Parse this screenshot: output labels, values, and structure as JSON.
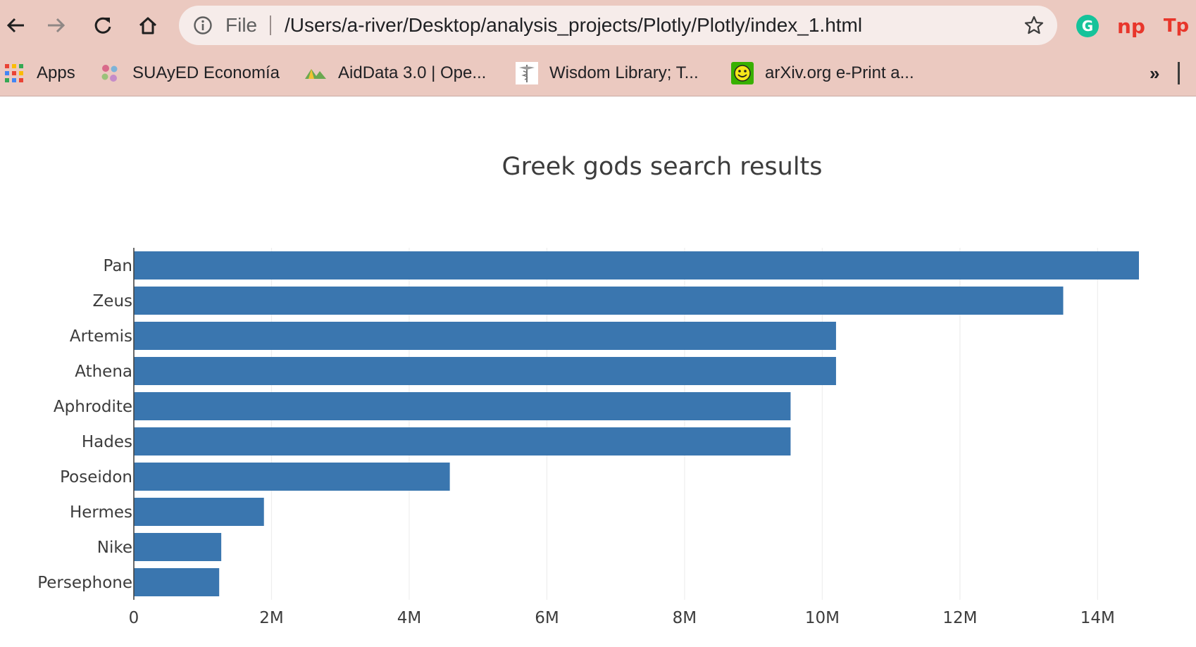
{
  "browser": {
    "address_bar": {
      "scheme_label": "File",
      "url": "/Users/a-river/Desktop/analysis_projects/Plotly/Plotly/index_1.html"
    },
    "extensions": [
      {
        "icon": "grammarly-icon",
        "label": "G",
        "color": "#15c39a"
      },
      {
        "icon": "np-extension-icon",
        "label": "np",
        "color": "#e8362b"
      },
      {
        "icon": "tp-extension-icon",
        "label": "Tp",
        "color": "#e8362b"
      }
    ],
    "bookmarks": [
      {
        "icon": "apps-grid-icon",
        "label": "Apps"
      },
      {
        "icon": "suayed-icon",
        "label": "SUAyED Economía"
      },
      {
        "icon": "aiddata-icon",
        "label": "AidData 3.0 | Ope..."
      },
      {
        "icon": "caduceus-icon",
        "label": "Wisdom Library; T..."
      },
      {
        "icon": "arxiv-smiley-icon",
        "label": "arXiv.org e-Print a..."
      }
    ],
    "overflow_label": "»"
  },
  "chart_data": {
    "type": "bar",
    "orientation": "horizontal",
    "title": "Greek gods search results",
    "categories": [
      "Pan",
      "Zeus",
      "Artemis",
      "Athena",
      "Aphrodite",
      "Hades",
      "Poseidon",
      "Hermes",
      "Nike",
      "Persephone"
    ],
    "values": [
      14600000,
      13500000,
      10200000,
      10200000,
      9540000,
      9540000,
      4590000,
      1890000,
      1270000,
      1240000
    ],
    "xticks": [
      0,
      2000000,
      4000000,
      6000000,
      8000000,
      10000000,
      12000000,
      14000000
    ],
    "xtick_labels": [
      "0",
      "2M",
      "4M",
      "6M",
      "8M",
      "10M",
      "12M",
      "14M"
    ],
    "xlim": [
      0,
      14600000
    ],
    "grid": true,
    "colors": {
      "bar": "#3a76af",
      "grid": "#eeeeee",
      "text": "#3c3c3c"
    }
  }
}
